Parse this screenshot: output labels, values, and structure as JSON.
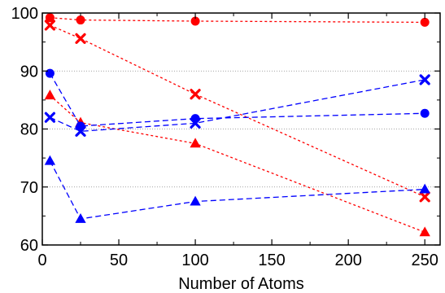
{
  "chart_data": {
    "type": "scatter",
    "title": "",
    "xlabel": "Number of Atoms",
    "ylabel": "",
    "xlim": [
      0,
      260
    ],
    "ylim": [
      60,
      100
    ],
    "xticks": [
      0,
      50,
      100,
      150,
      200,
      250
    ],
    "yticks": [
      60,
      70,
      80,
      90,
      100
    ],
    "grid": "horizontal dotted",
    "series": [
      {
        "color": "#ff0000",
        "marker": "circle",
        "line": "dotted",
        "x": [
          5,
          25,
          100,
          250
        ],
        "y": [
          99.2,
          98.8,
          98.6,
          98.4
        ]
      },
      {
        "color": "#ff0000",
        "marker": "cross",
        "line": "dotted",
        "x": [
          5,
          25,
          100,
          250
        ],
        "y": [
          97.9,
          95.6,
          86.0,
          68.3
        ]
      },
      {
        "color": "#ff0000",
        "marker": "triangle",
        "line": "dotted",
        "x": [
          5,
          25,
          100,
          250
        ],
        "y": [
          85.8,
          81.1,
          77.5,
          62.2
        ]
      },
      {
        "color": "#0000ff",
        "marker": "circle",
        "line": "dashed",
        "x": [
          5,
          25,
          100,
          250
        ],
        "y": [
          89.6,
          80.5,
          81.8,
          82.7
        ]
      },
      {
        "color": "#0000ff",
        "marker": "cross",
        "line": "dashed",
        "x": [
          5,
          25,
          100,
          250
        ],
        "y": [
          82.0,
          79.6,
          81.0,
          88.5
        ]
      },
      {
        "color": "#0000ff",
        "marker": "triangle",
        "line": "dashed",
        "x": [
          5,
          25,
          100,
          250
        ],
        "y": [
          74.5,
          64.5,
          67.5,
          69.6
        ]
      }
    ]
  }
}
